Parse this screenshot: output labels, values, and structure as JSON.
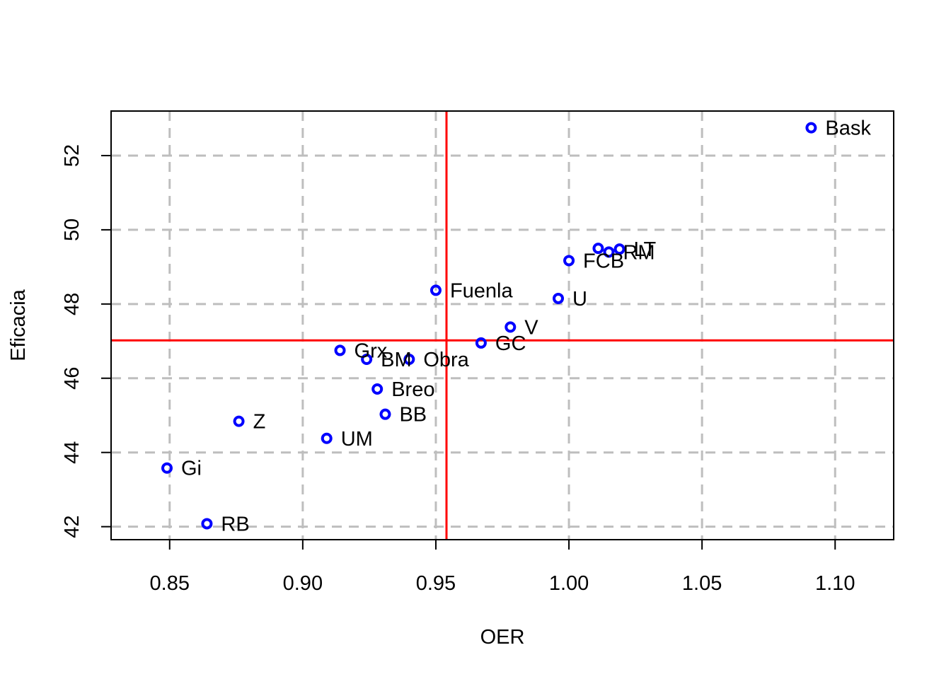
{
  "chart_data": {
    "type": "scatter",
    "title": "",
    "xlabel": "OER",
    "ylabel": "Eficacia",
    "xlim": [
      0.828,
      1.122
    ],
    "ylim": [
      41.65,
      53.2
    ],
    "x_ticks": [
      0.85,
      0.9,
      0.95,
      1.0,
      1.05,
      1.1
    ],
    "x_tick_labels": [
      "0.85",
      "0.90",
      "0.95",
      "1.00",
      "1.05",
      "1.10"
    ],
    "y_ticks": [
      42,
      44,
      46,
      48,
      50,
      52
    ],
    "y_tick_labels": [
      "42",
      "44",
      "46",
      "48",
      "50",
      "52"
    ],
    "grid": true,
    "reference_lines": {
      "x": 0.954,
      "y": 47.02
    },
    "colors": {
      "points": "#0000ff",
      "reference": "#ff0000",
      "grid": "#bebebe"
    },
    "points": [
      {
        "label": "Bask",
        "x": 1.091,
        "y": 52.75
      },
      {
        "label": "LT",
        "x": 1.019,
        "y": 49.48
      },
      {
        "label": "RM",
        "x": 1.015,
        "y": 49.4
      },
      {
        "label": "",
        "x": 1.011,
        "y": 49.5
      },
      {
        "label": "FCB",
        "x": 1.0,
        "y": 49.17
      },
      {
        "label": "U",
        "x": 0.996,
        "y": 48.15
      },
      {
        "label": "Fuenla",
        "x": 0.95,
        "y": 48.37
      },
      {
        "label": "V",
        "x": 0.978,
        "y": 47.38
      },
      {
        "label": "GC",
        "x": 0.967,
        "y": 46.95
      },
      {
        "label": "Grx",
        "x": 0.914,
        "y": 46.75
      },
      {
        "label": "BM",
        "x": 0.924,
        "y": 46.51
      },
      {
        "label": "Obra",
        "x": 0.94,
        "y": 46.51
      },
      {
        "label": "Breo",
        "x": 0.928,
        "y": 45.71
      },
      {
        "label": "BB",
        "x": 0.931,
        "y": 45.03
      },
      {
        "label": "Z",
        "x": 0.876,
        "y": 44.84
      },
      {
        "label": "UM",
        "x": 0.909,
        "y": 44.38
      },
      {
        "label": "Gi",
        "x": 0.849,
        "y": 43.58
      },
      {
        "label": "RB",
        "x": 0.864,
        "y": 42.08
      }
    ]
  }
}
